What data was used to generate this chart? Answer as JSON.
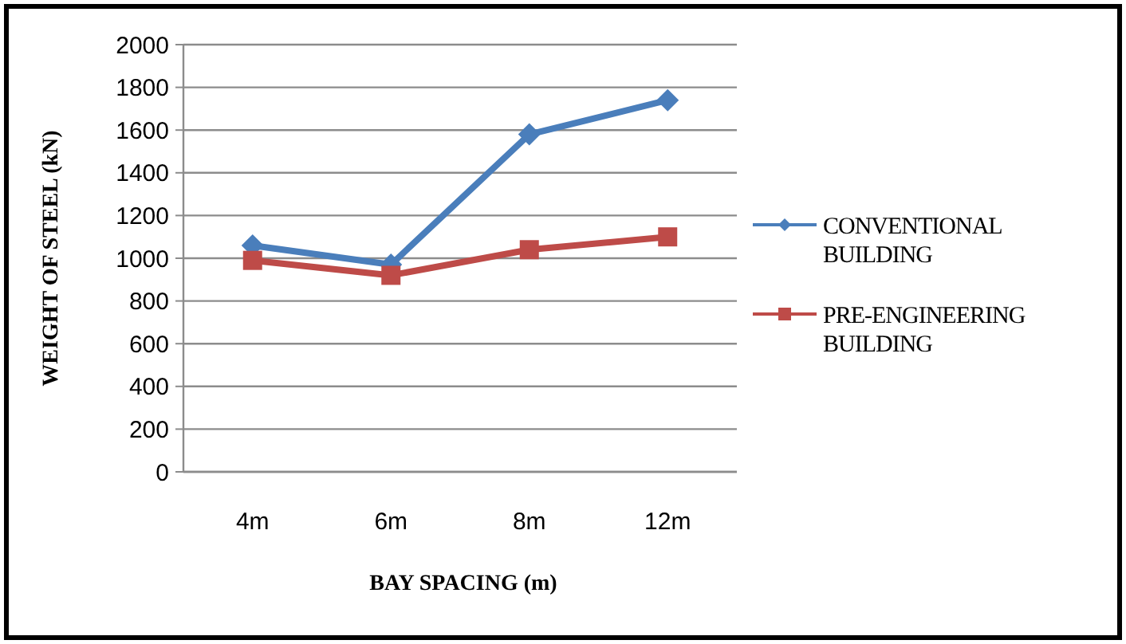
{
  "chart_data": {
    "type": "line",
    "xlabel": "BAY SPACING (m)",
    "ylabel": "WEIGHT OF STEEL (kN)",
    "categories": [
      "4m",
      "6m",
      "8m",
      "12m"
    ],
    "series": [
      {
        "name": "CONVENTIONAL BUILDING",
        "color": "#4a7ebb",
        "marker": "diamond",
        "values": [
          1060,
          970,
          1580,
          1740
        ]
      },
      {
        "name": "PRE-ENGINEERING BUILDING",
        "color": "#be4b48",
        "marker": "square",
        "values": [
          990,
          920,
          1040,
          1100
        ]
      }
    ],
    "ylim": [
      0,
      2000
    ],
    "yticks": [
      0,
      200,
      400,
      600,
      800,
      1000,
      1200,
      1400,
      1600,
      1800,
      2000
    ],
    "grid": "y",
    "legend": "right",
    "line_style": "solid"
  }
}
